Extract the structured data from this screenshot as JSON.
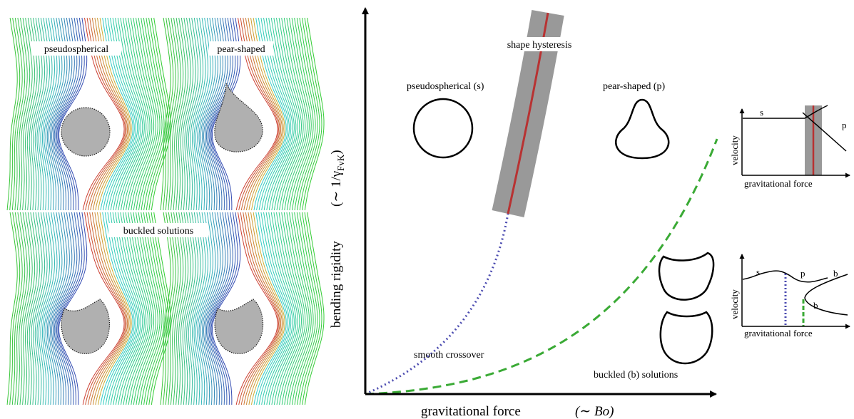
{
  "flow_panels": {
    "labels": [
      "pseudospherical",
      "pear-shaped",
      "buckled solutions"
    ]
  },
  "phase_diagram": {
    "y_label": "bending rigidity",
    "y_scaling": "(∼ 1/γ",
    "y_scaling_subscript": "FvK",
    "y_scaling_close": ")",
    "x_label": "gravitational force",
    "x_scaling": "(∼ Bo)",
    "regions": [
      "shape hysteresis",
      "pseudospherical (s)",
      "pear-shaped (p)",
      "smooth crossover",
      "buckled (b) solutions"
    ]
  },
  "insets": [
    {
      "y_label": "velocity",
      "x_label": "gravitational force",
      "curve_labels": [
        "s",
        "p"
      ]
    },
    {
      "y_label": "velocity",
      "x_label": "gravitational force",
      "curve_labels": [
        "s",
        "p",
        "b",
        "b"
      ]
    }
  ]
}
